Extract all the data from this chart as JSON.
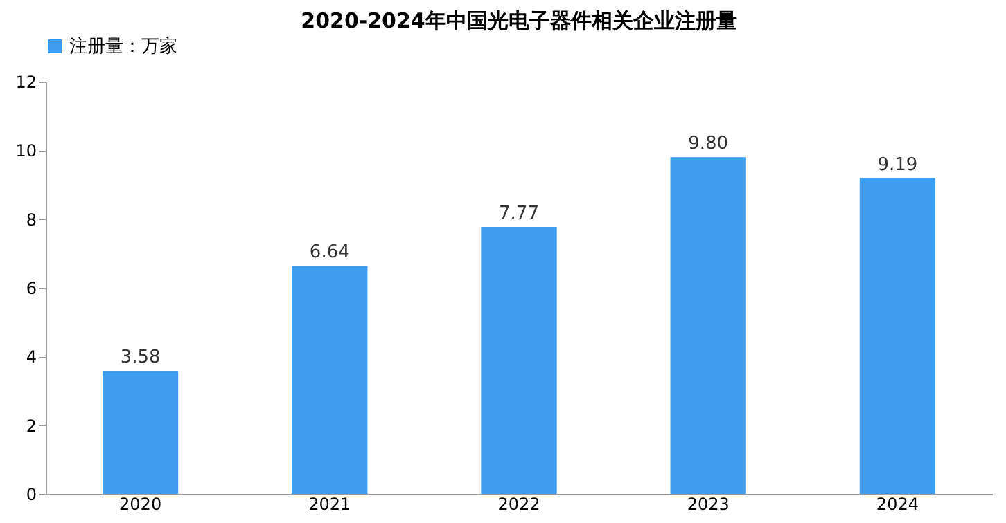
{
  "chart_data": {
    "type": "bar",
    "title": "2020-2024年中国光电子器件相关企业注册量",
    "categories": [
      "2020",
      "2021",
      "2022",
      "2023",
      "2024"
    ],
    "series": [
      {
        "name": "注册量：万家",
        "color": "#3d9df0",
        "values": [
          3.58,
          6.64,
          7.77,
          9.8,
          9.19
        ],
        "value_labels": [
          "3.58",
          "6.64",
          "7.77",
          "9.80",
          "9.19"
        ]
      }
    ],
    "ylim": [
      0,
      12
    ],
    "yticks": [
      0,
      2,
      4,
      6,
      8,
      10,
      12
    ],
    "grid": false,
    "legend": "top"
  }
}
